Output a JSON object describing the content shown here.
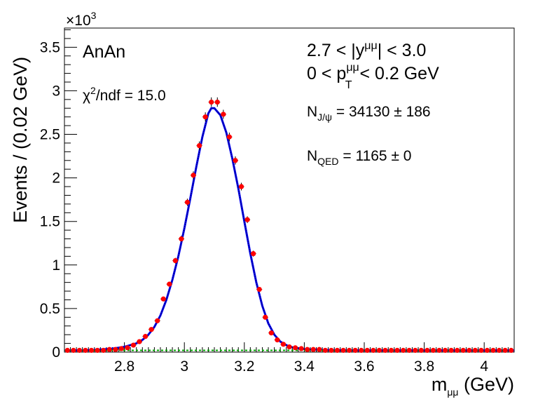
{
  "chart_data": {
    "type": "scatter",
    "xlabel": "m",
    "xlabel_sub": "μμ",
    "xlabel_unit": " (GeV)",
    "ylabel": "Events / (0.02 GeV)",
    "y_multiplier": "×10",
    "y_multiplier_exp": "3",
    "xlim": [
      2.6,
      4.1
    ],
    "ylim": [
      0,
      3.72
    ],
    "x_ticks": [
      2.8,
      3,
      3.2,
      3.4,
      3.6,
      3.8,
      4
    ],
    "x_tick_labels": [
      "2.8",
      "3",
      "3.2",
      "3.4",
      "3.6",
      "3.8",
      "4"
    ],
    "y_ticks": [
      0,
      0.5,
      1,
      1.5,
      2,
      2.5,
      3,
      3.5
    ],
    "y_tick_labels": [
      "0",
      "0.5",
      "1",
      "1.5",
      "2",
      "2.5",
      "3",
      "3.5"
    ],
    "grid": false,
    "colors": {
      "data_points": "#ff0000",
      "total_fit": "#000080",
      "signal_fit": "#0000ff",
      "qed_background": "#00aa00"
    },
    "series": [
      {
        "kind": "data",
        "x": [
          2.61,
          2.63,
          2.65,
          2.67,
          2.69,
          2.71,
          2.73,
          2.75,
          2.77,
          2.79,
          2.81,
          2.83,
          2.85,
          2.87,
          2.89,
          2.91,
          2.93,
          2.95,
          2.97,
          2.99,
          3.01,
          3.03,
          3.05,
          3.07,
          3.09,
          3.11,
          3.13,
          3.15,
          3.17,
          3.19,
          3.21,
          3.23,
          3.25,
          3.27,
          3.29,
          3.31,
          3.33,
          3.35,
          3.37,
          3.39,
          3.41,
          3.43,
          3.45,
          3.47,
          3.49,
          3.51,
          3.53,
          3.55,
          3.57,
          3.59,
          3.61,
          3.63,
          3.65,
          3.67,
          3.69,
          3.71,
          3.73,
          3.75,
          3.77,
          3.79,
          3.81,
          3.83,
          3.85,
          3.87,
          3.89,
          3.91,
          3.93,
          3.95,
          3.97,
          3.99,
          4.01,
          4.03,
          4.05,
          4.07,
          4.09
        ],
        "y": [
          0.02,
          0.02,
          0.02,
          0.02,
          0.02,
          0.02,
          0.02,
          0.03,
          0.03,
          0.04,
          0.05,
          0.08,
          0.12,
          0.18,
          0.26,
          0.36,
          0.61,
          0.78,
          1.05,
          1.3,
          1.72,
          2.03,
          2.37,
          2.7,
          2.87,
          2.87,
          2.73,
          2.47,
          2.2,
          1.9,
          1.52,
          1.13,
          0.72,
          0.4,
          0.22,
          0.14,
          0.09,
          0.06,
          0.05,
          0.04,
          0.03,
          0.03,
          0.03,
          0.02,
          0.02,
          0.02,
          0.02,
          0.02,
          0.02,
          0.02,
          0.02,
          0.02,
          0.02,
          0.02,
          0.02,
          0.02,
          0.02,
          0.02,
          0.02,
          0.02,
          0.02,
          0.02,
          0.02,
          0.02,
          0.02,
          0.02,
          0.02,
          0.02,
          0.02,
          0.02,
          0.02,
          0.02,
          0.02,
          0.02,
          0.02
        ],
        "err": [
          0.004,
          0.004,
          0.004,
          0.004,
          0.004,
          0.004,
          0.004,
          0.005,
          0.005,
          0.006,
          0.007,
          0.009,
          0.011,
          0.013,
          0.016,
          0.019,
          0.025,
          0.028,
          0.032,
          0.036,
          0.041,
          0.045,
          0.049,
          0.052,
          0.054,
          0.054,
          0.052,
          0.05,
          0.047,
          0.044,
          0.039,
          0.034,
          0.027,
          0.02,
          0.015,
          0.012,
          0.009,
          0.008,
          0.007,
          0.006,
          0.005,
          0.005,
          0.005,
          0.004,
          0.004,
          0.004,
          0.004,
          0.004,
          0.004,
          0.004,
          0.004,
          0.004,
          0.004,
          0.004,
          0.004,
          0.004,
          0.004,
          0.004,
          0.004,
          0.004,
          0.004,
          0.004,
          0.004,
          0.004,
          0.004,
          0.004,
          0.004,
          0.004,
          0.004,
          0.004,
          0.004,
          0.004,
          0.004,
          0.004,
          0.004
        ]
      },
      {
        "kind": "total-fit",
        "x": [
          2.6,
          2.65,
          2.7,
          2.72,
          2.74,
          2.76,
          2.78,
          2.8,
          2.82,
          2.84,
          2.86,
          2.88,
          2.9,
          2.92,
          2.94,
          2.96,
          2.98,
          3.0,
          3.02,
          3.04,
          3.06,
          3.08,
          3.09,
          3.1,
          3.12,
          3.14,
          3.16,
          3.18,
          3.2,
          3.22,
          3.24,
          3.26,
          3.28,
          3.3,
          3.32,
          3.34,
          3.36,
          3.38,
          3.4,
          3.42,
          3.44,
          3.46,
          3.5,
          3.6,
          3.7,
          3.8,
          3.9,
          4.0,
          4.1
        ],
        "y": [
          0.02,
          0.02,
          0.025,
          0.03,
          0.035,
          0.04,
          0.05,
          0.06,
          0.08,
          0.1,
          0.14,
          0.2,
          0.29,
          0.42,
          0.6,
          0.83,
          1.1,
          1.42,
          1.77,
          2.13,
          2.47,
          2.74,
          2.8,
          2.8,
          2.72,
          2.52,
          2.22,
          1.88,
          1.5,
          1.13,
          0.8,
          0.53,
          0.33,
          0.2,
          0.12,
          0.08,
          0.055,
          0.045,
          0.035,
          0.03,
          0.028,
          0.025,
          0.022,
          0.02,
          0.02,
          0.02,
          0.02,
          0.02,
          0.02
        ]
      },
      {
        "kind": "qed-background",
        "x": [
          2.6,
          4.1
        ],
        "y": [
          0.02,
          0.02
        ]
      }
    ],
    "annotations": {
      "label": "AnAn",
      "chi2": "χ",
      "chi2_sup": "2",
      "chi2_rest": "/ndf = 15.0",
      "rapidity_pre": "2.7 < |y",
      "rapidity_sup": "μμ",
      "rapidity_post": "| < 3.0",
      "pt_pre": "0 < p",
      "pt_sup": "μμ",
      "pt_sub": "T",
      "pt_post": " < 0.2 GeV",
      "njpsi_pre": "N",
      "njpsi_sub": "J/ψ",
      "njpsi_post": " = 34130 ± 186",
      "nqed_pre": "N",
      "nqed_sub": "QED",
      "nqed_post": " = 1165 ± 0"
    }
  }
}
